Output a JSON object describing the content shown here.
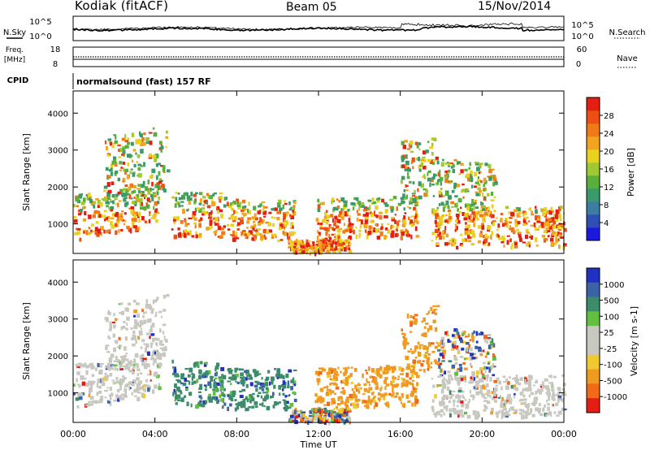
{
  "header": {
    "station": "Kodiak (fitACF)",
    "beam": "Beam 05",
    "date": "15/Nov/2014"
  },
  "noise_panel": {
    "left_label": "N.Sky",
    "right_label": "N.Search",
    "left_ticks": [
      "10^5",
      "10^0"
    ],
    "right_ticks": [
      "10^5",
      "10^0"
    ]
  },
  "freq_panel": {
    "left_label_line1": "Freq.",
    "left_label_line2": "[MHz]",
    "left_ticks": [
      "18",
      "8"
    ],
    "right_label": "Nave",
    "right_ticks": [
      "60",
      "0"
    ]
  },
  "cpid_panel": {
    "label": "CPID",
    "value": "normalsound (fast) 157 RF"
  },
  "chart_data": [
    {
      "type": "heatmap",
      "name": "power",
      "ylabel": "Slant Range [km]",
      "ylim": [
        200,
        4600
      ],
      "yticks": [
        "1000",
        "2000",
        "3000",
        "4000"
      ],
      "xlim": [
        0,
        24
      ],
      "colorbar": {
        "label": "Power [dB]",
        "ticks": [
          "4",
          "8",
          "12",
          "16",
          "20",
          "24",
          "28"
        ],
        "range": [
          0,
          32
        ],
        "colors": [
          "#1a1adc",
          "#2e4fb4",
          "#3c7ea2",
          "#3a9a6a",
          "#58b03a",
          "#a0c832",
          "#e8d21e",
          "#f2a41e",
          "#f07a18",
          "#ec4e14",
          "#e41e12"
        ]
      }
    },
    {
      "type": "heatmap",
      "name": "velocity",
      "ylabel": "Slant Range [km]",
      "ylim": [
        200,
        4600
      ],
      "yticks": [
        "1000",
        "2000",
        "3000",
        "4000"
      ],
      "xlim": [
        0,
        24
      ],
      "colorbar": {
        "label": "Velocity [m s-1]",
        "ticks": [
          "1000",
          "500",
          "100",
          "25",
          "-25",
          "-100",
          "-500",
          "-1000"
        ],
        "colors": [
          "#2030c0",
          "#3c62a8",
          "#3a8c6a",
          "#62c040",
          "#c8c8c0",
          "#c8c8c0",
          "#f0c830",
          "#f09a20",
          "#f06a18",
          "#e41e12"
        ]
      }
    }
  ],
  "xaxis": {
    "label": "Time UT",
    "ticks": [
      "00:00",
      "04:00",
      "08:00",
      "12:00",
      "16:00",
      "20:00",
      "00:00"
    ]
  },
  "colors": {
    "ground_scatter": "#c8c8c0"
  }
}
